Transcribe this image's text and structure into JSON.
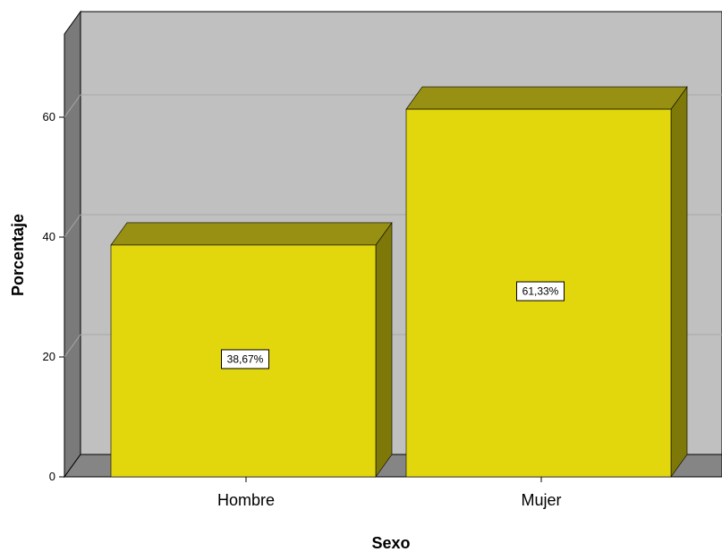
{
  "chart_data": {
    "type": "bar",
    "categories": [
      "Hombre",
      "Mujer"
    ],
    "values": [
      38.67,
      61.33
    ],
    "data_labels": [
      "38,67%",
      "61,33%"
    ],
    "title": "",
    "xlabel": "Sexo",
    "ylabel": "Porcentaje",
    "ylim": [
      0,
      75
    ],
    "yticks": [
      0,
      20,
      40,
      60
    ],
    "ytick_labels": [
      "0",
      "20",
      "40",
      "60"
    ],
    "grid": true,
    "style": "3d",
    "colors": {
      "bar_front": "#e2d60c",
      "bar_top": "#989012",
      "bar_side": "#7e7808",
      "back_wall": "#c0c0c0",
      "side_wall": "#7a7a7a",
      "floor": "#858585",
      "gridline": "#a8a8a8"
    }
  }
}
